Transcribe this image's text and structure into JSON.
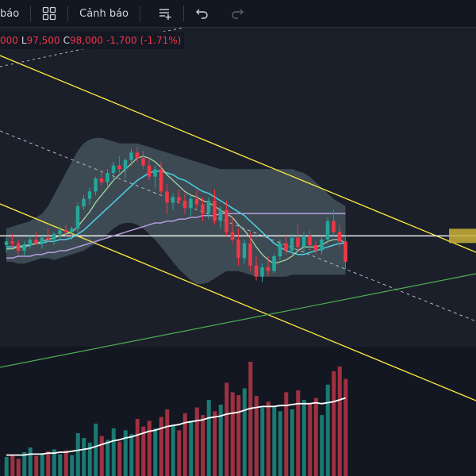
{
  "toolbar": {
    "indicators_label_partial": "báo",
    "alerts_label": "Cảnh báo",
    "icons": [
      "layout-grid-icon",
      "alert-list-icon",
      "undo-icon",
      "redo-icon"
    ]
  },
  "legend": {
    "open_partial": "000",
    "low_key": "L",
    "low_value": "97,500",
    "close_key": "C",
    "close_value": "98,000",
    "change": "-1,700 (-1.71%)"
  },
  "colors": {
    "background": "#131722",
    "up": "#26a69a",
    "down": "#f23645",
    "channel": "#ffeb3b",
    "support_line": "#4caf50",
    "bollinger_fill": "#4a5a63",
    "price_line": "#ffffff",
    "volume_ma": "#ffffff"
  },
  "chart_data": {
    "type": "candlestick",
    "candles": [
      [
        69,
        73,
        65,
        71
      ],
      [
        71,
        75,
        68,
        70
      ],
      [
        70,
        72,
        64,
        66
      ],
      [
        66,
        71,
        63,
        69
      ],
      [
        69,
        74,
        67,
        72
      ],
      [
        72,
        76,
        69,
        70
      ],
      [
        70,
        74,
        67,
        73
      ],
      [
        73,
        78,
        71,
        72
      ],
      [
        72,
        76,
        69,
        75
      ],
      [
        75,
        79,
        72,
        77
      ],
      [
        77,
        80,
        74,
        76
      ],
      [
        76,
        79,
        72,
        78
      ],
      [
        78,
        92,
        76,
        90
      ],
      [
        90,
        96,
        88,
        94
      ],
      [
        94,
        100,
        91,
        98
      ],
      [
        98,
        106,
        96,
        105
      ],
      [
        105,
        109,
        101,
        103
      ],
      [
        103,
        110,
        100,
        108
      ],
      [
        108,
        114,
        104,
        112
      ],
      [
        112,
        117,
        108,
        110
      ],
      [
        110,
        116,
        105,
        115
      ],
      [
        115,
        121,
        112,
        119
      ],
      [
        119,
        122,
        114,
        116
      ],
      [
        116,
        120,
        110,
        112
      ],
      [
        112,
        116,
        104,
        106
      ],
      [
        106,
        112,
        100,
        110
      ],
      [
        110,
        114,
        96,
        98
      ],
      [
        98,
        102,
        86,
        92
      ],
      [
        92,
        97,
        88,
        95
      ],
      [
        95,
        99,
        91,
        93
      ],
      [
        93,
        97,
        86,
        89
      ],
      [
        89,
        96,
        85,
        94
      ],
      [
        94,
        99,
        89,
        91
      ],
      [
        91,
        95,
        82,
        86
      ],
      [
        86,
        95,
        83,
        93
      ],
      [
        93,
        99,
        80,
        82
      ],
      [
        82,
        90,
        78,
        88
      ],
      [
        88,
        93,
        74,
        76
      ],
      [
        76,
        84,
        70,
        72
      ],
      [
        72,
        78,
        58,
        62
      ],
      [
        62,
        72,
        59,
        70
      ],
      [
        70,
        76,
        55,
        58
      ],
      [
        58,
        63,
        50,
        52
      ],
      [
        52,
        59,
        49,
        57
      ],
      [
        57,
        63,
        52,
        55
      ],
      [
        55,
        64,
        54,
        63
      ],
      [
        63,
        72,
        61,
        70
      ],
      [
        70,
        74,
        64,
        66
      ],
      [
        66,
        75,
        64,
        73
      ],
      [
        73,
        80,
        66,
        68
      ],
      [
        68,
        76,
        65,
        74
      ],
      [
        74,
        77,
        66,
        69
      ],
      [
        69,
        71,
        64,
        66
      ],
      [
        66,
        74,
        64,
        72
      ],
      [
        72,
        84,
        70,
        82
      ],
      [
        82,
        88,
        74,
        76
      ],
      [
        76,
        80,
        68,
        71
      ],
      [
        71,
        74,
        56,
        60
      ]
    ],
    "volume": [
      20,
      22,
      18,
      25,
      30,
      21,
      24,
      26,
      28,
      23,
      27,
      22,
      45,
      40,
      35,
      55,
      42,
      38,
      50,
      36,
      48,
      44,
      60,
      52,
      58,
      50,
      62,
      70,
      54,
      48,
      66,
      58,
      72,
      64,
      80,
      68,
      75,
      98,
      88,
      85,
      92,
      120,
      84,
      72,
      78,
      74,
      68,
      88,
      70,
      90,
      80,
      76,
      82,
      64,
      96,
      110,
      115,
      102
    ],
    "volume_ma": [
      22,
      22,
      22,
      22,
      23,
      23,
      23,
      24,
      24,
      25,
      25,
      26,
      27,
      28,
      29,
      31,
      33,
      35,
      37,
      38,
      40,
      41,
      43,
      45,
      47,
      48,
      50,
      52,
      53,
      54,
      56,
      57,
      58,
      59,
      61,
      62,
      63,
      65,
      66,
      67,
      69,
      71,
      72,
      73,
      73,
      73,
      74,
      74,
      75,
      76,
      76,
      76,
      77,
      76,
      77,
      78,
      80,
      82
    ],
    "bollinger_upper": [
      78,
      79,
      80,
      81,
      82,
      84,
      86,
      90,
      96,
      102,
      108,
      114,
      120,
      124,
      126,
      127,
      127,
      126,
      125,
      124,
      124,
      124,
      124,
      123,
      122,
      121,
      120,
      119,
      118,
      117,
      116,
      115,
      114,
      113,
      112,
      111,
      110,
      110,
      110,
      110,
      110,
      110,
      110,
      110,
      110,
      110,
      110,
      110,
      110,
      109,
      108,
      106,
      103,
      100,
      97,
      94,
      92,
      90
    ],
    "bollinger_lower": [
      60,
      60,
      59,
      59,
      60,
      61,
      62,
      62,
      61,
      62,
      63,
      64,
      65,
      66,
      68,
      70,
      72,
      75,
      78,
      80,
      81,
      81,
      80,
      78,
      75,
      72,
      68,
      64,
      60,
      56,
      53,
      50,
      48,
      48,
      49,
      51,
      53,
      55,
      55,
      55,
      54,
      53,
      52,
      52,
      52,
      52,
      52,
      52,
      53,
      53,
      53,
      53,
      53,
      53,
      53,
      53,
      53,
      53
    ],
    "ma_short": [
      67,
      67,
      68,
      68,
      69,
      70,
      71,
      72,
      73,
      74,
      75,
      76,
      79,
      83,
      87,
      92,
      96,
      100,
      104,
      107,
      110,
      113,
      116,
      117,
      116,
      114,
      111,
      107,
      104,
      101,
      98,
      96,
      95,
      93,
      92,
      90,
      88,
      86,
      84,
      80,
      77,
      73,
      68,
      64,
      61,
      59,
      60,
      61,
      63,
      66,
      68,
      68,
      68,
      69,
      71,
      72,
      72,
      70
    ],
    "ma_mid": [
      68,
      68,
      68,
      69,
      69,
      70,
      70,
      71,
      71,
      72,
      72,
      73,
      75,
      77,
      80,
      83,
      86,
      89,
      92,
      95,
      98,
      101,
      104,
      106,
      108,
      109,
      109,
      108,
      107,
      105,
      104,
      102,
      100,
      98,
      97,
      95,
      93,
      91,
      89,
      87,
      85,
      82,
      79,
      76,
      73,
      70,
      68,
      66,
      65,
      64,
      64,
      65,
      66,
      67,
      68,
      69,
      70,
      70
    ],
    "ma_long": [
      62,
      62,
      63,
      63,
      63,
      64,
      64,
      65,
      65,
      66,
      66,
      67,
      68,
      69,
      70,
      71,
      72,
      73,
      74,
      75,
      76,
      77,
      78,
      79,
      80,
      81,
      81,
      82,
      82,
      83,
      83,
      84,
      84,
      85,
      85,
      85,
      86,
      86,
      86,
      86,
      86,
      86,
      86,
      86,
      86,
      86,
      86,
      86,
      86,
      86,
      86,
      86,
      86,
      86,
      86,
      86,
      86,
      86
    ],
    "reference_price": 74,
    "ylim": [
      30,
      150
    ]
  }
}
